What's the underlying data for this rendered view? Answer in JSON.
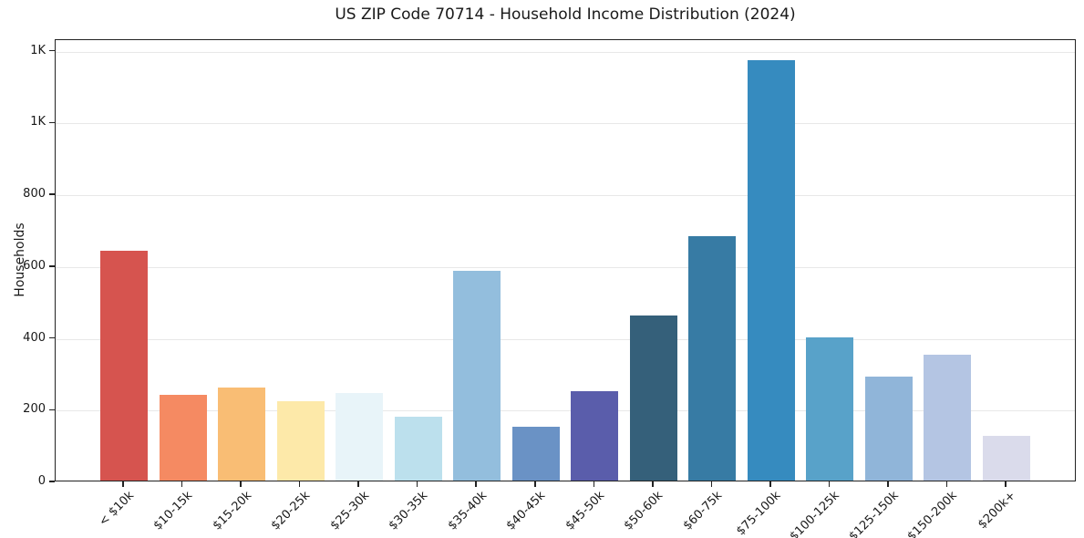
{
  "page": {
    "background_color": "#ffffff",
    "text_color": "#191919",
    "grid_color": "#e8e8e8",
    "spine_color": "#222222"
  },
  "chart_data": {
    "type": "bar",
    "title": "US ZIP Code 70714 - Household Income Distribution (2024)",
    "xlabel": "",
    "ylabel": "Households",
    "categories": [
      "< $10k",
      "$10-15k",
      "$15-20k",
      "$20-25k",
      "$25-30k",
      "$30-35k",
      "$35-40k",
      "$40-45k",
      "$45-50k",
      "$50-60k",
      "$60-75k",
      "$75-100k",
      "$100-125k",
      "$125-150k",
      "$150-200k",
      "$200k+"
    ],
    "values": [
      640,
      240,
      260,
      220,
      243,
      177,
      585,
      150,
      250,
      460,
      680,
      1170,
      400,
      290,
      350,
      125
    ],
    "bar_colors": [
      "#d6544f",
      "#f58a62",
      "#f9bd74",
      "#fde9a9",
      "#e8f4f9",
      "#bce0ed",
      "#93bedd",
      "#6a92c5",
      "#5a5dab",
      "#35607a",
      "#377ba4",
      "#368bbf",
      "#58a2c9",
      "#90b5d9",
      "#b4c5e3",
      "#dadbeb"
    ],
    "ylim": [
      0,
      1232
    ],
    "yticks": [
      {
        "value": 0,
        "label": "0"
      },
      {
        "value": 200,
        "label": "200"
      },
      {
        "value": 400,
        "label": "400"
      },
      {
        "value": 600,
        "label": "600"
      },
      {
        "value": 800,
        "label": "800"
      },
      {
        "value": 1000,
        "label": "1K"
      },
      {
        "value": 1200,
        "label": "1K"
      }
    ],
    "grid": "horizontal",
    "legend": "none",
    "xtick_rotation_deg": 45
  }
}
